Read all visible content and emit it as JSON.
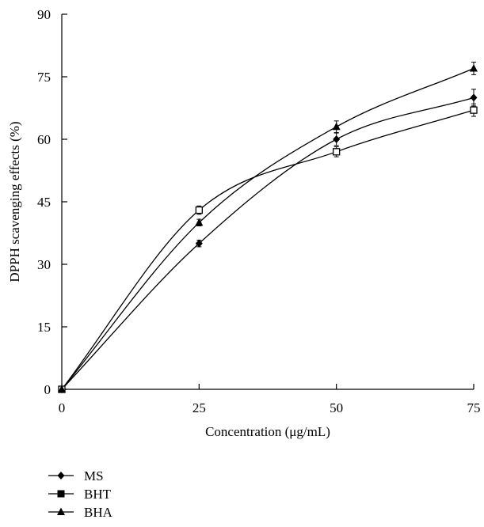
{
  "chart_data": {
    "type": "line",
    "xlabel": "Concentration (μg/mL)",
    "ylabel": "DPPH scavenging effects (%)",
    "xlim": [
      0,
      75
    ],
    "ylim": [
      0,
      90
    ],
    "x_ticks": [
      "0",
      "25",
      "50",
      "75"
    ],
    "y_ticks": [
      "0",
      "15",
      "30",
      "45",
      "60",
      "75",
      "90"
    ],
    "x": [
      0,
      25,
      50,
      75
    ],
    "series": [
      {
        "name": "MS",
        "marker": "diamond",
        "values": [
          0,
          35,
          60,
          70
        ],
        "errors": [
          0,
          0.8,
          1.5,
          2.0
        ]
      },
      {
        "name": "BHT",
        "marker": "square-open",
        "values": [
          0,
          43,
          57,
          67
        ],
        "errors": [
          0,
          1.0,
          1.2,
          1.5
        ]
      },
      {
        "name": "BHA",
        "marker": "triangle",
        "values": [
          0,
          40,
          63,
          77
        ],
        "errors": [
          0,
          0.8,
          1.4,
          1.5
        ]
      }
    ],
    "legend_placement": "bottom-left",
    "grid": false,
    "color": "#000000"
  }
}
